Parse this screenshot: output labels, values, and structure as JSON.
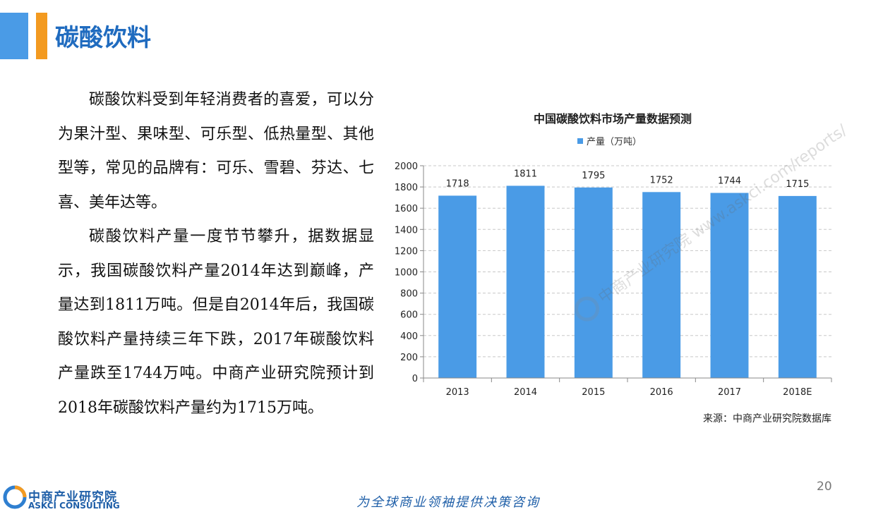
{
  "header": {
    "title": "碳酸饮料"
  },
  "body": {
    "paragraphs": [
      "碳酸饮料受到年轻消费者的喜爱，可以分为果汁型、果味型、可乐型、低热量型、其他型等，常见的品牌有：可乐、雪碧、芬达、七喜、美年达等。",
      "碳酸饮料产量一度节节攀升，据数据显示，我国碳酸饮料产量2014年达到巅峰，产量达到1811万吨。但是自2014年后，我国碳酸饮料产量持续三年下跌，2017年碳酸饮料产量跌至1744万吨。中商产业研究院预计到2018年碳酸饮料产量约为1715万吨。"
    ]
  },
  "chart_data": {
    "type": "bar",
    "title": "中国碳酸饮料市场产量数据预测",
    "categories": [
      "2013",
      "2014",
      "2015",
      "2016",
      "2017",
      "2018E"
    ],
    "series": [
      {
        "name": "产量（万吨）",
        "values": [
          1718,
          1811,
          1795,
          1752,
          1744,
          1715
        ]
      }
    ],
    "ylim": [
      0,
      2000
    ],
    "yticks": [
      0,
      200,
      400,
      600,
      800,
      1000,
      1200,
      1400,
      1600,
      1800,
      2000
    ],
    "grid": true,
    "legend": "top",
    "bar_color": "#4a9be6",
    "source": "来源：中商产业研究院数据库",
    "watermark": "中商产业研究院 www.askci.com/reports/"
  },
  "footer": {
    "page_number": "20",
    "logo_cn": "中商产业研究院",
    "logo_en": "ASKCI CONSULTING",
    "slogan": "为全球商业领袖提供决策咨询"
  },
  "colors": {
    "title": "#1f6bbf",
    "accent": "#f39a20",
    "bar": "#4a9be6",
    "brand": "#1f5fa8"
  }
}
